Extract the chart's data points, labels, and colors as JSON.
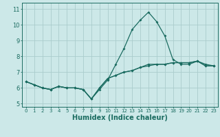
{
  "xlabel": "Humidex (Indice chaleur)",
  "bg_color": "#cce8e8",
  "grid_color": "#aacccc",
  "line_color": "#1a6b60",
  "spine_color": "#1a6b60",
  "xlim": [
    -0.5,
    23.5
  ],
  "ylim": [
    4.8,
    11.4
  ],
  "xticks": [
    0,
    1,
    2,
    3,
    4,
    5,
    6,
    7,
    8,
    9,
    10,
    11,
    12,
    13,
    14,
    15,
    16,
    17,
    18,
    19,
    20,
    21,
    22,
    23
  ],
  "yticks": [
    5,
    6,
    7,
    8,
    9,
    10,
    11
  ],
  "series": [
    [
      6.4,
      6.2,
      6.0,
      5.9,
      6.1,
      6.0,
      6.0,
      5.9,
      5.3,
      5.9,
      6.5,
      7.5,
      8.5,
      9.7,
      10.3,
      10.8,
      10.2,
      9.3,
      7.8,
      7.5,
      7.5,
      7.7,
      7.4,
      7.4
    ],
    [
      6.4,
      6.2,
      6.0,
      5.9,
      6.1,
      6.0,
      6.0,
      5.9,
      5.3,
      6.0,
      6.6,
      6.8,
      7.0,
      7.1,
      7.3,
      7.4,
      7.5,
      7.5,
      7.6,
      7.6,
      7.6,
      7.7,
      7.4,
      7.4
    ],
    [
      6.4,
      6.2,
      6.0,
      5.9,
      6.1,
      6.0,
      6.0,
      5.9,
      5.3,
      6.0,
      6.6,
      6.8,
      7.0,
      7.1,
      7.3,
      7.5,
      7.5,
      7.5,
      7.6,
      7.6,
      7.6,
      7.7,
      7.5,
      7.4
    ]
  ],
  "xlabel_fontsize": 7,
  "tick_fontsize": 5,
  "ytick_fontsize": 6,
  "linewidth": 0.9,
  "markersize": 2.0
}
